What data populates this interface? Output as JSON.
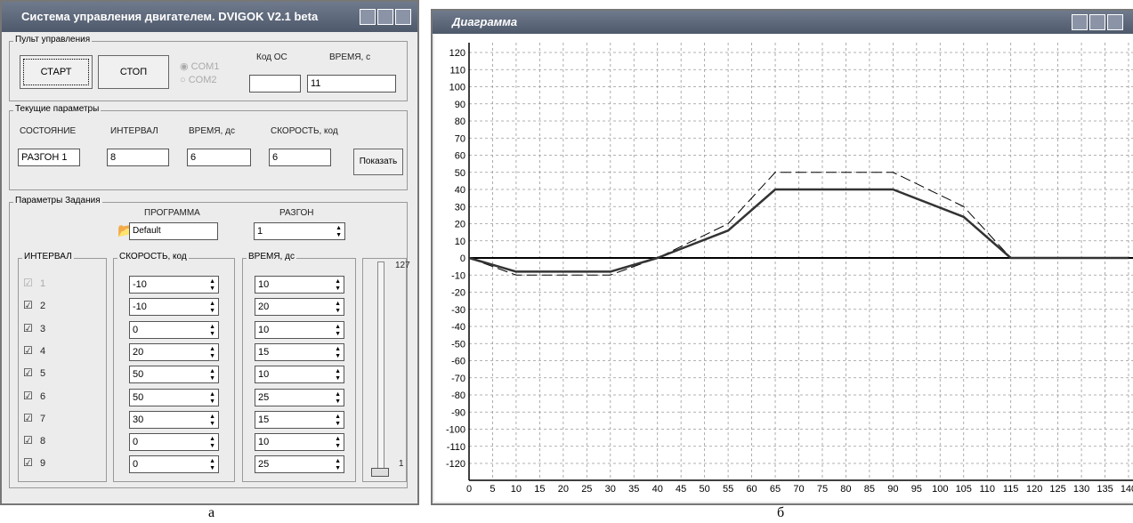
{
  "control_window": {
    "title": "Система управления двигателем. DVIGOK V2.1 beta",
    "panel": {
      "title": "Пульт управления",
      "start": "СТАРТ",
      "stop": "СТОП",
      "com1": "COM1",
      "com2": "COM2",
      "code_label": "Код ОС",
      "time_label": "ВРЕМЯ, с",
      "time_value": 11
    },
    "current": {
      "title": "Текущие параметры",
      "labels": [
        "СОСТОЯНИЕ",
        "ИНТЕРВАЛ",
        "ВРЕМЯ, дс",
        "СКОРОСТЬ, код"
      ],
      "values": [
        "РАЗГОН 1",
        8,
        6,
        6
      ],
      "show_button": "Показать"
    },
    "task": {
      "title": "Параметры Задания",
      "program_label": "ПРОГРАММА",
      "program_value": "Default",
      "mode_label": "РАЗГОН",
      "mode_value": 1,
      "interval_header": "ИНТЕРВАЛ",
      "speed_header": "СКОРОСТЬ, код",
      "time_header": "ВРЕМЯ, дс",
      "rows": [
        {
          "n": 1,
          "speed": -10,
          "time": 10
        },
        {
          "n": 2,
          "speed": -10,
          "time": 20
        },
        {
          "n": 3,
          "speed": 0,
          "time": 10
        },
        {
          "n": 4,
          "speed": 20,
          "time": 15
        },
        {
          "n": 5,
          "speed": 50,
          "time": 10
        },
        {
          "n": 6,
          "speed": 50,
          "time": 25
        },
        {
          "n": 7,
          "speed": 30,
          "time": 15
        },
        {
          "n": 8,
          "speed": 0,
          "time": 10
        },
        {
          "n": 9,
          "speed": 0,
          "time": 25
        }
      ],
      "slider_max": 127,
      "slider_min": 1
    }
  },
  "chart_window": {
    "title": "Диаграмма"
  },
  "chart_data": {
    "type": "line",
    "x": [
      0,
      10,
      30,
      40,
      55,
      65,
      90,
      105,
      115,
      140
    ],
    "series": [
      {
        "color": "#000000",
        "style": "dashed",
        "values": [
          0,
          -10,
          -10,
          0,
          20,
          50,
          50,
          30,
          0,
          0
        ]
      },
      {
        "color": "#333333",
        "style": "solid",
        "values": [
          0,
          -8,
          -8,
          0,
          16,
          40,
          40,
          24,
          0,
          0
        ]
      }
    ],
    "xlim": [
      0,
      140
    ],
    "ylim": [
      -120,
      120
    ],
    "xticks": [
      0,
      5,
      10,
      15,
      20,
      25,
      30,
      35,
      40,
      45,
      50,
      55,
      60,
      65,
      70,
      75,
      80,
      85,
      90,
      95,
      100,
      105,
      110,
      115,
      120,
      125,
      130,
      135,
      140
    ],
    "yticks": [
      120,
      110,
      100,
      90,
      80,
      70,
      60,
      50,
      40,
      30,
      20,
      10,
      0,
      -10,
      -20,
      -30,
      -40,
      -50,
      -60,
      -70,
      -80,
      -90,
      -100,
      -110,
      -120
    ],
    "grid": true
  },
  "captions": [
    "а",
    "б"
  ]
}
